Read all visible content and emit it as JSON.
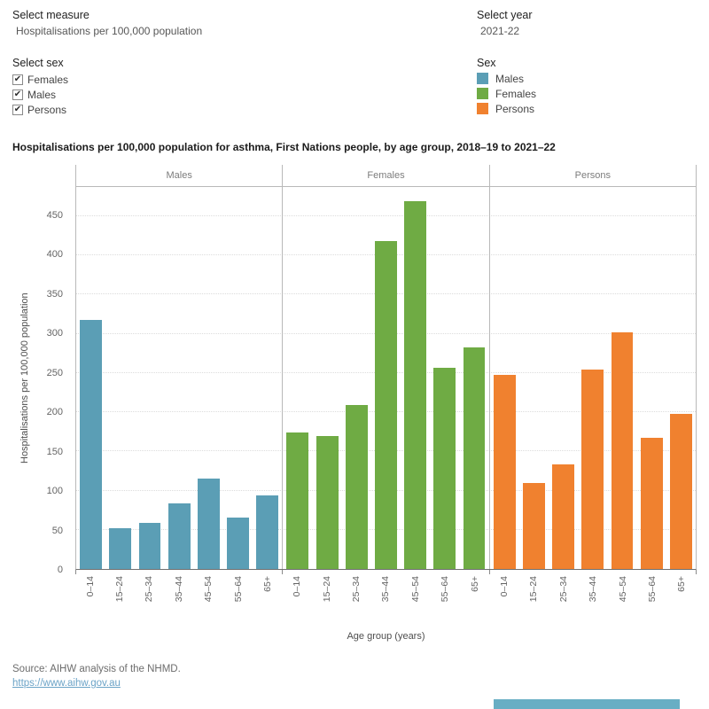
{
  "controls": {
    "measure": {
      "label": "Select measure",
      "value": "Hospitalisations per 100,000 population"
    },
    "year": {
      "label": "Select year",
      "value": "2021-22"
    },
    "sex_filter": {
      "label": "Select sex",
      "options": [
        {
          "label": "Females",
          "checked": true
        },
        {
          "label": "Males",
          "checked": true
        },
        {
          "label": "Persons",
          "checked": true
        }
      ]
    }
  },
  "legend": {
    "title": "Sex",
    "items": [
      {
        "label": "Males",
        "color": "#5b9eb5"
      },
      {
        "label": "Females",
        "color": "#6fab44"
      },
      {
        "label": "Persons",
        "color": "#f0812f"
      }
    ]
  },
  "chart_data": {
    "type": "bar",
    "title": "Hospitalisations per 100,000 population for asthma, First Nations people, by age group, 2018–19 to 2021–22",
    "panel_headers": [
      "Males",
      "Females",
      "Persons"
    ],
    "categories": [
      "0–14",
      "15–24",
      "25–34",
      "35–44",
      "45–54",
      "55–64",
      "65+"
    ],
    "series": [
      {
        "name": "Males",
        "color": "#5b9eb5",
        "values": [
          318,
          52,
          59,
          84,
          115,
          65,
          94
        ]
      },
      {
        "name": "Females",
        "color": "#6fab44",
        "values": [
          174,
          170,
          209,
          418,
          469,
          256,
          283
        ]
      },
      {
        "name": "Persons",
        "color": "#f0812f",
        "values": [
          248,
          110,
          133,
          254,
          302,
          167,
          198
        ]
      }
    ],
    "xlabel": "Age group (years)",
    "ylabel": "Hospitalisations per 100,000 population",
    "ylim": [
      0,
      487
    ],
    "yticks": [
      0,
      50,
      100,
      150,
      200,
      250,
      300,
      350,
      400,
      450
    ],
    "grid": "horizontal-dotted",
    "legend_position": "top-right"
  },
  "footer": {
    "source": "Source: AIHW analysis of the NHMD.",
    "link": "https://www.aihw.gov.au",
    "scrollbar_color": "#68aec4"
  },
  "glyphs": {
    "checkmark": "✔"
  }
}
